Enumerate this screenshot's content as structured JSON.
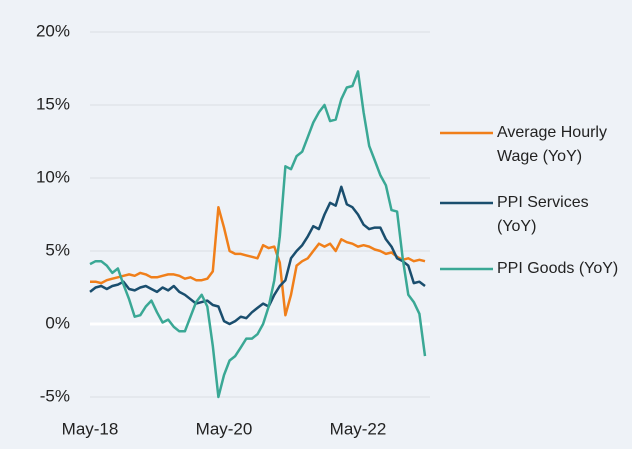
{
  "chart_data": {
    "type": "line",
    "categories": [
      "May-18",
      null,
      null,
      null,
      null,
      null,
      null,
      null,
      null,
      null,
      null,
      null,
      null,
      null,
      null,
      null,
      null,
      null,
      null,
      null,
      null,
      null,
      null,
      null,
      "May-20",
      null,
      null,
      null,
      null,
      null,
      null,
      null,
      null,
      null,
      null,
      null,
      null,
      null,
      null,
      null,
      null,
      null,
      null,
      null,
      null,
      null,
      null,
      null,
      "May-22",
      null,
      null,
      null,
      null,
      null,
      null,
      null,
      null,
      null,
      null,
      null,
      null
    ],
    "series": [
      {
        "name": "Average Hourly Wage (YoY)",
        "color": "#f07f1a",
        "values": [
          2.9,
          2.9,
          2.8,
          3.0,
          3.1,
          3.2,
          3.3,
          3.4,
          3.3,
          3.5,
          3.4,
          3.2,
          3.2,
          3.3,
          3.4,
          3.4,
          3.3,
          3.1,
          3.2,
          3.0,
          3.0,
          3.1,
          3.6,
          8.0,
          6.6,
          5.0,
          4.8,
          4.8,
          4.7,
          4.6,
          4.5,
          5.4,
          5.2,
          5.3,
          4.2,
          0.6,
          2.0,
          4.0,
          4.3,
          4.5,
          5.0,
          5.5,
          5.3,
          5.5,
          5.0,
          5.8,
          5.6,
          5.5,
          5.3,
          5.4,
          5.3,
          5.1,
          5.0,
          4.8,
          4.9,
          4.6,
          4.4,
          4.5,
          4.3,
          4.4,
          4.3
        ]
      },
      {
        "name": "PPI Services (YoY)",
        "color": "#1a4e6e",
        "values": [
          2.2,
          2.5,
          2.6,
          2.4,
          2.6,
          2.7,
          2.9,
          2.4,
          2.3,
          2.5,
          2.6,
          2.4,
          2.2,
          2.5,
          2.3,
          2.6,
          2.2,
          2.0,
          1.7,
          1.4,
          1.5,
          1.6,
          1.3,
          1.2,
          0.2,
          0.0,
          0.2,
          0.5,
          0.4,
          0.8,
          1.1,
          1.4,
          1.2,
          2.0,
          2.6,
          3.0,
          4.5,
          5.0,
          5.4,
          6.0,
          6.7,
          6.5,
          7.5,
          8.3,
          8.1,
          9.4,
          8.2,
          8.0,
          7.5,
          6.8,
          6.5,
          6.6,
          6.6,
          5.8,
          5.3,
          4.5,
          4.3,
          4.0,
          2.8,
          2.9,
          2.6
        ]
      },
      {
        "name": "PPI Goods (YoY)",
        "color": "#3aa895",
        "values": [
          4.1,
          4.3,
          4.3,
          4.0,
          3.5,
          3.8,
          2.7,
          1.7,
          0.5,
          0.6,
          1.2,
          1.6,
          0.8,
          0.1,
          0.3,
          -0.2,
          -0.5,
          -0.5,
          0.5,
          1.5,
          2.0,
          1.2,
          -1.5,
          -5.0,
          -3.5,
          -2.5,
          -2.2,
          -1.6,
          -1.0,
          -1.0,
          -0.7,
          0.0,
          1.2,
          3.0,
          6.0,
          10.8,
          10.6,
          11.5,
          11.8,
          12.8,
          13.8,
          14.5,
          15.0,
          13.9,
          14.0,
          15.4,
          16.2,
          16.3,
          17.3,
          14.5,
          12.2,
          11.2,
          10.2,
          9.5,
          7.8,
          7.7,
          4.5,
          2.0,
          1.5,
          0.7,
          -2.2
        ]
      }
    ],
    "ylim": [
      -5,
      20
    ],
    "yticks": [
      {
        "value": -5,
        "label": "-5%"
      },
      {
        "value": 0,
        "label": "0%"
      },
      {
        "value": 5,
        "label": "5%"
      },
      {
        "value": 10,
        "label": "10%"
      },
      {
        "value": 15,
        "label": "15%"
      },
      {
        "value": 20,
        "label": "20%"
      }
    ],
    "grid": true
  }
}
